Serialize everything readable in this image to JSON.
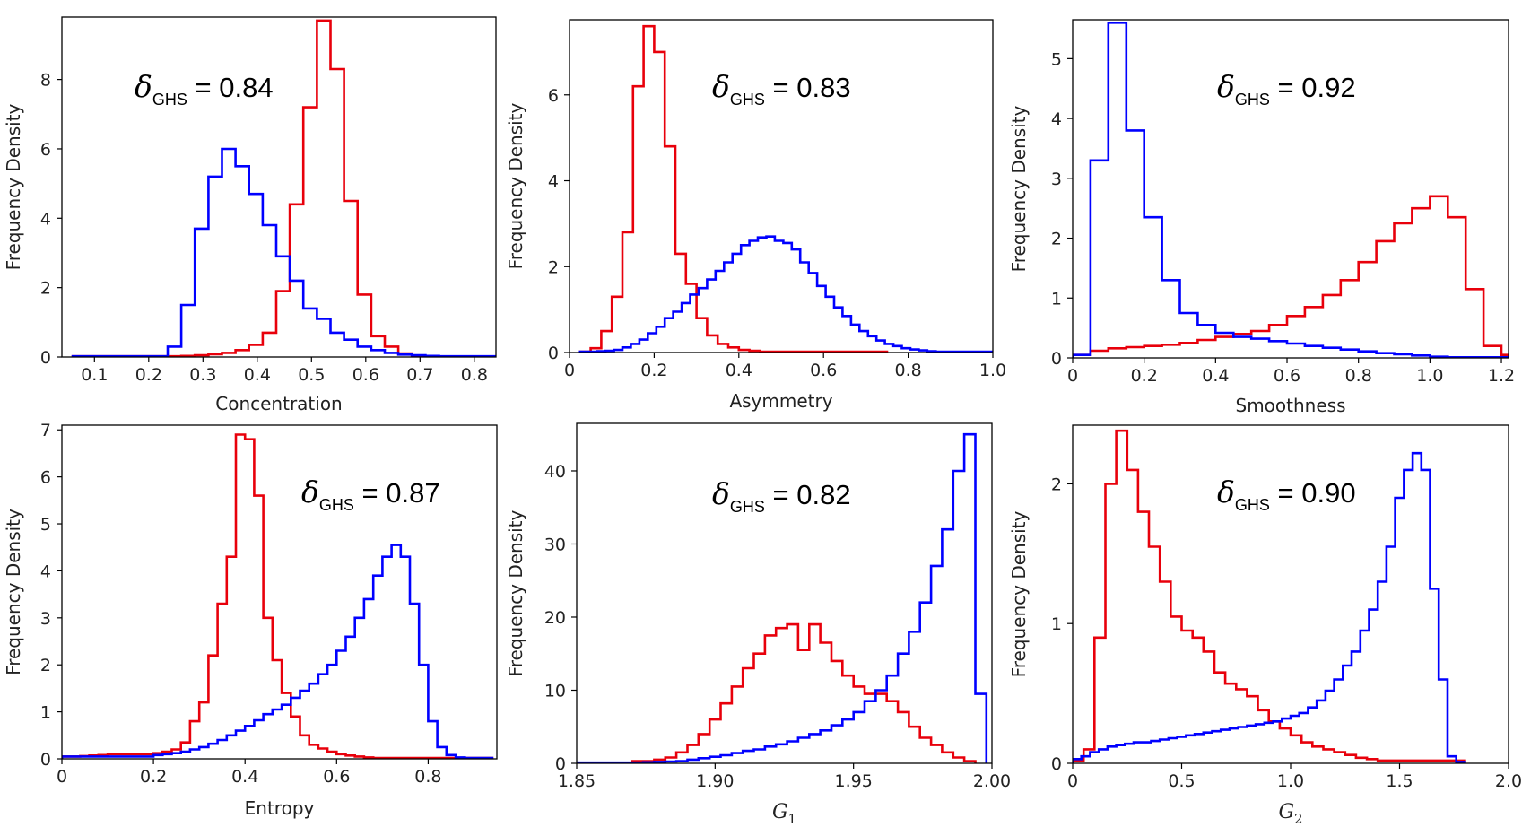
{
  "chart_data": [
    {
      "type": "histogram",
      "xlabel": "Concentration",
      "ylabel": "Frequency Density",
      "xlim": [
        0.04,
        0.84
      ],
      "ylim": [
        0,
        9.8
      ],
      "xticks": [
        0.1,
        0.2,
        0.3,
        0.4,
        0.5,
        0.6,
        0.7,
        0.8
      ],
      "xtick_labels": [
        "0.1",
        "0.2",
        "0.3",
        "0.4",
        "0.5",
        "0.6",
        "0.7",
        "0.8"
      ],
      "yticks": [
        0,
        2,
        4,
        6,
        8
      ],
      "ytick_labels": [
        "0",
        "2",
        "4",
        "6",
        "8"
      ],
      "annotation": {
        "symbol": "δ",
        "subscript": "GHS",
        "text": " = 0.84"
      },
      "series": [
        {
          "name": "red",
          "color": "#e8000b",
          "start": 0.06,
          "width": 0.025,
          "values": [
            0.02,
            0.02,
            0.02,
            0.02,
            0.02,
            0.02,
            0.02,
            0.02,
            0.03,
            0.05,
            0.08,
            0.12,
            0.2,
            0.35,
            0.7,
            1.9,
            4.4,
            7.2,
            9.7,
            8.3,
            4.5,
            1.8,
            0.6,
            0.3,
            0.1,
            0.03
          ]
        },
        {
          "name": "blue",
          "color": "#0000ff",
          "start": 0.06,
          "width": 0.025,
          "values": [
            0.02,
            0.02,
            0.02,
            0.02,
            0.02,
            0.02,
            0.02,
            0.3,
            1.5,
            3.7,
            5.2,
            6.0,
            5.5,
            4.7,
            3.8,
            2.9,
            2.2,
            1.4,
            1.1,
            0.7,
            0.5,
            0.3,
            0.2,
            0.12,
            0.07,
            0.05,
            0.03,
            0.02,
            0.02,
            0.02,
            0.02,
            0.02,
            0.02
          ]
        }
      ]
    },
    {
      "type": "histogram",
      "xlabel": "Asymmetry",
      "ylabel": "Frequency Density",
      "xlim": [
        0,
        1.0
      ],
      "ylim": [
        0,
        7.75
      ],
      "xticks": [
        0,
        0.2,
        0.4,
        0.6,
        0.8,
        1.0
      ],
      "xtick_labels": [
        "0",
        "0.2",
        "0.4",
        "0.6",
        "0.8",
        "1.0"
      ],
      "yticks": [
        0,
        2,
        4,
        6
      ],
      "ytick_labels": [
        "0",
        "2",
        "4",
        "6"
      ],
      "annotation": {
        "symbol": "δ",
        "subscript": "GHS",
        "text": " = 0.83"
      },
      "series": [
        {
          "name": "red",
          "color": "#e8000b",
          "start": 0.025,
          "width": 0.025,
          "values": [
            0.02,
            0.1,
            0.5,
            1.3,
            2.8,
            6.2,
            7.6,
            7.0,
            4.8,
            2.3,
            1.6,
            0.8,
            0.4,
            0.2,
            0.12,
            0.06,
            0.04,
            0.02,
            0.02,
            0.02,
            0.02,
            0.02,
            0.02,
            0.02,
            0.02,
            0.02,
            0.02,
            0.02,
            0.02
          ]
        },
        {
          "name": "blue",
          "color": "#0000ff",
          "start": 0.025,
          "width": 0.02,
          "values": [
            0.02,
            0.02,
            0.03,
            0.04,
            0.06,
            0.12,
            0.2,
            0.3,
            0.45,
            0.6,
            0.8,
            0.95,
            1.15,
            1.35,
            1.5,
            1.7,
            1.9,
            2.1,
            2.3,
            2.5,
            2.6,
            2.68,
            2.7,
            2.6,
            2.55,
            2.4,
            2.1,
            1.85,
            1.55,
            1.3,
            1.05,
            0.85,
            0.65,
            0.5,
            0.38,
            0.28,
            0.2,
            0.15,
            0.1,
            0.07,
            0.05,
            0.03,
            0.02,
            0.02,
            0.02,
            0.02,
            0.02,
            0.02,
            0.02
          ]
        }
      ]
    },
    {
      "type": "histogram",
      "xlabel": "Smoothness",
      "ylabel": "Frequency Density",
      "xlim": [
        0,
        1.22
      ],
      "ylim": [
        0,
        5.65
      ],
      "xticks": [
        0,
        0.2,
        0.4,
        0.6,
        0.8,
        1.0,
        1.2
      ],
      "xtick_labels": [
        "0",
        "0.2",
        "0.4",
        "0.6",
        "0.8",
        "1.0",
        "1.2"
      ],
      "yticks": [
        0,
        1,
        2,
        3,
        4,
        5
      ],
      "ytick_labels": [
        "0",
        "1",
        "2",
        "3",
        "4",
        "5"
      ],
      "annotation": {
        "symbol": "δ",
        "subscript": "GHS",
        "text": " = 0.92"
      },
      "series": [
        {
          "name": "red",
          "color": "#e8000b",
          "start": 0.0,
          "width": 0.05,
          "values": [
            0.05,
            0.12,
            0.16,
            0.18,
            0.2,
            0.22,
            0.25,
            0.3,
            0.35,
            0.4,
            0.45,
            0.55,
            0.7,
            0.85,
            1.05,
            1.3,
            1.6,
            1.95,
            2.25,
            2.5,
            2.7,
            2.35,
            1.15,
            0.2,
            0.05
          ]
        },
        {
          "name": "blue",
          "color": "#0000ff",
          "start": 0.0,
          "width": 0.05,
          "values": [
            0.05,
            3.3,
            5.6,
            3.8,
            2.35,
            1.3,
            0.75,
            0.55,
            0.42,
            0.35,
            0.32,
            0.28,
            0.24,
            0.2,
            0.17,
            0.14,
            0.11,
            0.08,
            0.06,
            0.04,
            0.02,
            0.01,
            0.01,
            0.01,
            0.01
          ]
        }
      ]
    },
    {
      "type": "histogram",
      "xlabel": "Entropy",
      "ylabel": "Frequency Density",
      "xlim": [
        0,
        0.95
      ],
      "ylim": [
        0,
        7.1
      ],
      "xticks": [
        0,
        0.2,
        0.4,
        0.6,
        0.8
      ],
      "xtick_labels": [
        "0",
        "0.2",
        "0.4",
        "0.6",
        "0.8"
      ],
      "yticks": [
        0,
        1,
        2,
        3,
        4,
        5,
        6,
        7
      ],
      "ytick_labels": [
        "0",
        "1",
        "2",
        "3",
        "4",
        "5",
        "6",
        "7"
      ],
      "annotation": {
        "symbol": "δ",
        "subscript": "GHS",
        "text": " = 0.87"
      },
      "series": [
        {
          "name": "red",
          "color": "#e8000b",
          "start": 0.0,
          "width": 0.02,
          "values": [
            0.05,
            0.05,
            0.06,
            0.07,
            0.08,
            0.1,
            0.1,
            0.1,
            0.1,
            0.1,
            0.12,
            0.15,
            0.2,
            0.35,
            0.8,
            1.2,
            2.2,
            3.3,
            4.3,
            6.9,
            6.8,
            5.6,
            3.0,
            2.1,
            1.4,
            0.9,
            0.5,
            0.3,
            0.22,
            0.15,
            0.1,
            0.07,
            0.05,
            0.03,
            0.02,
            0.02,
            0.02,
            0.02,
            0.02,
            0.02,
            0.02,
            0.02,
            0.02,
            0.02,
            0.02,
            0.02,
            0.02
          ]
        },
        {
          "name": "blue",
          "color": "#0000ff",
          "start": 0.0,
          "width": 0.02,
          "values": [
            0.05,
            0.05,
            0.05,
            0.05,
            0.05,
            0.05,
            0.05,
            0.05,
            0.05,
            0.05,
            0.08,
            0.1,
            0.12,
            0.15,
            0.2,
            0.25,
            0.32,
            0.4,
            0.5,
            0.6,
            0.7,
            0.82,
            0.95,
            1.05,
            1.15,
            1.3,
            1.45,
            1.6,
            1.8,
            2.0,
            2.3,
            2.6,
            3.0,
            3.4,
            3.9,
            4.3,
            4.55,
            4.3,
            3.3,
            2.0,
            0.8,
            0.25,
            0.08,
            0.03,
            0.02,
            0.02,
            0.02
          ]
        }
      ]
    },
    {
      "type": "histogram",
      "xlabel": "G_1",
      "xlabel_base": "G",
      "xlabel_sub": "1",
      "ylabel": "Frequency Density",
      "xlim": [
        1.85,
        2.0
      ],
      "ylim": [
        0,
        46.5
      ],
      "xticks": [
        1.85,
        1.9,
        1.95,
        2.0
      ],
      "xtick_labels": [
        "1.85",
        "1.90",
        "1.95",
        "2.00"
      ],
      "yticks": [
        0,
        10,
        20,
        30,
        40
      ],
      "ytick_labels": [
        "0",
        "10",
        "20",
        "30",
        "40"
      ],
      "annotation": {
        "symbol": "δ",
        "subscript": "GHS",
        "text": " = 0.82"
      },
      "series": [
        {
          "name": "red",
          "color": "#e8000b",
          "start": 1.87,
          "width": 0.004,
          "values": [
            0.3,
            0.3,
            0.5,
            0.8,
            1.5,
            2.5,
            4.0,
            6.0,
            8.2,
            10.5,
            13.0,
            15.0,
            17.5,
            18.5,
            19.0,
            15.5,
            19.0,
            16.5,
            14.0,
            12.0,
            10.5,
            9.5,
            9.5,
            8.5,
            7.0,
            5.0,
            3.5,
            2.5,
            1.5,
            0.8,
            0.3
          ]
        },
        {
          "name": "blue",
          "color": "#0000ff",
          "start": 1.85,
          "width": 0.004,
          "values": [
            0.1,
            0.1,
            0.1,
            0.1,
            0.1,
            0.1,
            0.15,
            0.2,
            0.25,
            0.3,
            0.5,
            0.7,
            0.9,
            1.1,
            1.4,
            1.7,
            1.9,
            2.3,
            2.6,
            3.0,
            3.5,
            4.0,
            4.5,
            5.2,
            6.0,
            7.0,
            8.5,
            10.0,
            12.0,
            15.0,
            18.0,
            22.0,
            27.0,
            32.0,
            40.0,
            45.0,
            9.5
          ]
        }
      ]
    },
    {
      "type": "histogram",
      "xlabel": "G_2",
      "xlabel_base": "G",
      "xlabel_sub": "2",
      "ylabel": "Frequency Density",
      "xlim": [
        0,
        2.0
      ],
      "ylim": [
        0,
        2.42
      ],
      "xticks": [
        0,
        0.5,
        1.0,
        1.5,
        2.0
      ],
      "xtick_labels": [
        "0",
        "0.5",
        "1.0",
        "1.5",
        "2.0"
      ],
      "yticks": [
        0,
        1,
        2
      ],
      "ytick_labels": [
        "0",
        "1",
        "2"
      ],
      "annotation": {
        "symbol": "δ",
        "subscript": "GHS",
        "text": " = 0.90"
      },
      "series": [
        {
          "name": "red",
          "color": "#e8000b",
          "start": 0.0,
          "width": 0.05,
          "values": [
            0.02,
            0.1,
            0.9,
            2.0,
            2.38,
            2.1,
            1.8,
            1.55,
            1.3,
            1.05,
            0.95,
            0.9,
            0.8,
            0.65,
            0.57,
            0.53,
            0.48,
            0.38,
            0.3,
            0.25,
            0.2,
            0.15,
            0.12,
            0.1,
            0.08,
            0.06,
            0.04,
            0.03,
            0.02,
            0.02,
            0.02,
            0.02,
            0.02,
            0.02,
            0.02,
            0.02
          ]
        },
        {
          "name": "blue",
          "color": "#0000ff",
          "start": 0.0,
          "width": 0.04,
          "values": [
            0.03,
            0.05,
            0.08,
            0.1,
            0.12,
            0.13,
            0.14,
            0.15,
            0.15,
            0.16,
            0.17,
            0.18,
            0.19,
            0.2,
            0.21,
            0.22,
            0.23,
            0.24,
            0.25,
            0.26,
            0.27,
            0.28,
            0.29,
            0.3,
            0.32,
            0.34,
            0.36,
            0.4,
            0.45,
            0.52,
            0.6,
            0.7,
            0.8,
            0.95,
            1.1,
            1.3,
            1.55,
            1.9,
            2.1,
            2.22,
            2.1,
            1.25,
            0.6,
            0.05,
            0.01
          ]
        }
      ]
    }
  ]
}
